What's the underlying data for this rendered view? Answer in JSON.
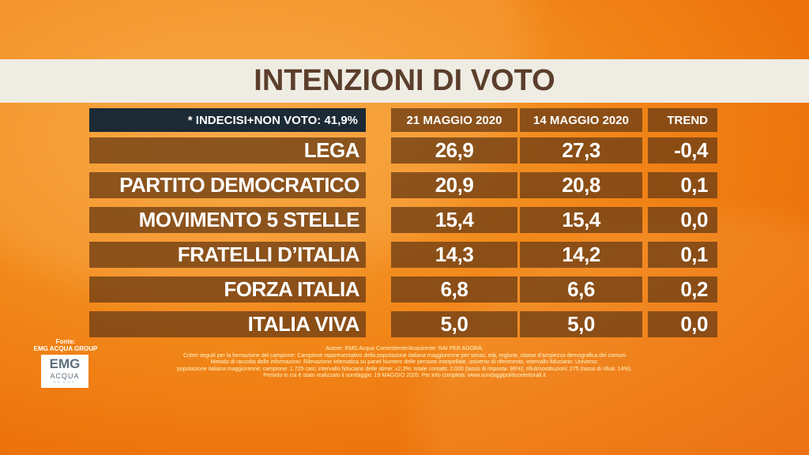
{
  "title": "INTENZIONI DI VOTO",
  "header": {
    "note": "* INDECISI+NON VOTO: 41,9%",
    "col1": "21 MAGGIO 2020",
    "col2": "14 MAGGIO 2020",
    "col3": "TREND"
  },
  "rows": [
    {
      "party": "LEGA",
      "v1": "26,9",
      "v2": "27,3",
      "trend": "-0,4"
    },
    {
      "party": "PARTITO DEMOCRATICO",
      "v1": "20,9",
      "v2": "20,8",
      "trend": "0,1"
    },
    {
      "party": "MOVIMENTO 5 STELLE",
      "v1": "15,4",
      "v2": "15,4",
      "trend": "0,0"
    },
    {
      "party": "FRATELLI D’ITALIA",
      "v1": "14,3",
      "v2": "14,2",
      "trend": "0,1"
    },
    {
      "party": "FORZA ITALIA",
      "v1": "6,8",
      "v2": "6,6",
      "trend": "0,2"
    },
    {
      "party": "ITALIA VIVA",
      "v1": "5,0",
      "v2": "5,0",
      "trend": "0,0"
    }
  ],
  "source": {
    "label": "Fonte:",
    "name": "EMG ACQUA GROUP",
    "logo": {
      "line1": "EMG",
      "line2": "ACQUA",
      "line3": "GROUP"
    }
  },
  "footer": [
    "Autore: EMG Acqua Committente/Acquirente: RAI PER AGORÀ;",
    "Criteri seguiti per la formazione del campione: Campione rappresentativo della popolazione italiana maggiorenne per sesso, età, regione, classe d'ampiezza demografica dei comuni",
    "Metodo di raccolta delle informazioni: Rilevazione telematica su panel Numero delle persone interpellate, universo di riferimento, intervallo fiduciario: Universo:",
    "popolazione italiana maggiorenne; campione: 1.725 casi; intervallo fiduciario delle stime: ±2,3%; totale contatti: 2.000 (tasso di risposta: 86%); rifiuti/sostituzioni: 275 (tasso di rifiuti: 14%).",
    "Periodo in cui è stato realizzato il sondaggio: 19 MAGGIO 2020. Per info completa: www.sondaggipoliticoelettorali.it"
  ]
}
